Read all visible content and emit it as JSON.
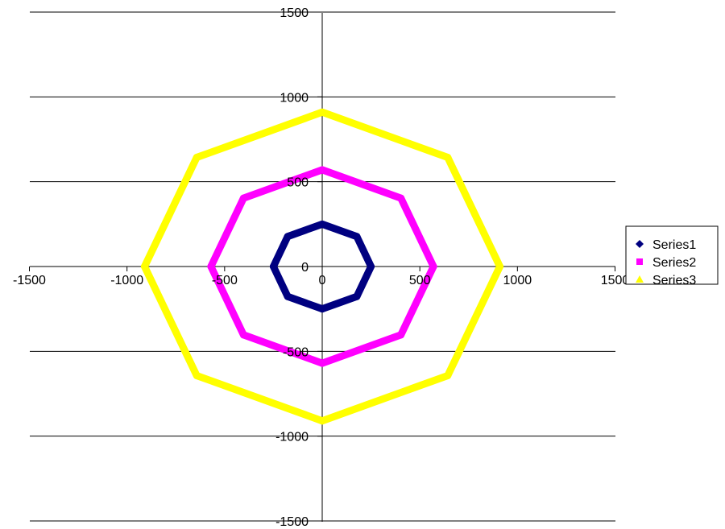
{
  "chart_data": {
    "type": "scatter",
    "title": "",
    "xlabel": "",
    "ylabel": "",
    "xlim": [
      -1500,
      1500
    ],
    "ylim": [
      -1500,
      1500
    ],
    "xticks": [
      -1500,
      -1000,
      -500,
      0,
      500,
      1000,
      1500
    ],
    "yticks": [
      -1500,
      -1000,
      -500,
      0,
      500,
      1000,
      1500
    ],
    "xtick_labels": [
      "-1500",
      "-1000",
      "-500",
      "0",
      "500",
      "1000",
      "1500"
    ],
    "ytick_labels": [
      "-1500",
      "-1000",
      "-500",
      "0",
      "500",
      "1000",
      "1500"
    ],
    "grid": "horizontal",
    "legend_position": "right",
    "series": [
      {
        "name": "Series1",
        "color": "#000080",
        "marker": "diamond",
        "vertices": [
          [
            0,
            250
          ],
          [
            177,
            177
          ],
          [
            250,
            0
          ],
          [
            177,
            -177
          ],
          [
            0,
            -250
          ],
          [
            -177,
            -177
          ],
          [
            -250,
            0
          ],
          [
            -177,
            177
          ]
        ]
      },
      {
        "name": "Series2",
        "color": "#FF00FF",
        "marker": "square",
        "vertices": [
          [
            0,
            570
          ],
          [
            403,
            403
          ],
          [
            570,
            0
          ],
          [
            403,
            -403
          ],
          [
            0,
            -570
          ],
          [
            -403,
            -403
          ],
          [
            -570,
            0
          ],
          [
            -403,
            403
          ]
        ]
      },
      {
        "name": "Series3",
        "color": "#FFFF00",
        "marker": "triangle",
        "vertices": [
          [
            0,
            910
          ],
          [
            643,
            643
          ],
          [
            910,
            0
          ],
          [
            643,
            -643
          ],
          [
            0,
            -910
          ],
          [
            -643,
            -643
          ],
          [
            -910,
            0
          ],
          [
            -643,
            643
          ]
        ]
      }
    ]
  }
}
